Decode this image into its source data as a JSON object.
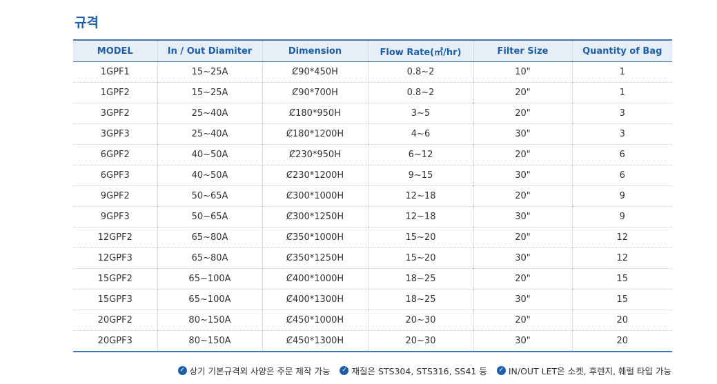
{
  "title": "규격",
  "table": {
    "headers": [
      "MODEL",
      "In / Out Diamiter",
      "Dimension",
      "Flow Rate(㎥/hr)",
      "Filter Size",
      "Quantity of Bag"
    ],
    "rows": [
      [
        "1GPF1",
        "15~25A",
        "Ȼ90*450H",
        "0.8~2",
        "10\"",
        "1"
      ],
      [
        "1GPF2",
        "15~25A",
        "Ȼ90*700H",
        "0.8~2",
        "20\"",
        "1"
      ],
      [
        "3GPF2",
        "25~40A",
        "Ȼ180*950H",
        "3~5",
        "20\"",
        "3"
      ],
      [
        "3GPF3",
        "25~40A",
        "Ȼ180*1200H",
        "4~6",
        "30\"",
        "3"
      ],
      [
        "6GPF2",
        "40~50A",
        "Ȼ230*950H",
        "6~12",
        "20\"",
        "6"
      ],
      [
        "6GPF3",
        "40~50A",
        "Ȼ230*1200H",
        "9~15",
        "30\"",
        "6"
      ],
      [
        "9GPF2",
        "50~65A",
        "Ȼ300*1000H",
        "12~18",
        "20\"",
        "9"
      ],
      [
        "9GPF3",
        "50~65A",
        "Ȼ300*1250H",
        "12~18",
        "30\"",
        "9"
      ],
      [
        "12GPF2",
        "65~80A",
        "Ȼ350*1000H",
        "15~20",
        "20\"",
        "12"
      ],
      [
        "12GPF3",
        "65~80A",
        "Ȼ350*1250H",
        "15~20",
        "30\"",
        "12"
      ],
      [
        "15GPF2",
        "65~100A",
        "Ȼ400*1000H",
        "18~25",
        "20\"",
        "15"
      ],
      [
        "15GPF3",
        "65~100A",
        "Ȼ400*1300H",
        "18~25",
        "30\"",
        "15"
      ],
      [
        "20GPF2",
        "80~150A",
        "Ȼ450*1000H",
        "20~30",
        "20\"",
        "20"
      ],
      [
        "20GPF3",
        "80~150A",
        "Ȼ450*1300H",
        "20~30",
        "30\"",
        "20"
      ]
    ]
  },
  "notes": [
    {
      "icon": "check-circle-icon",
      "text": "상기 기본규격외 사양은 주문 제작 가능"
    },
    {
      "icon": "check-circle-icon",
      "text": "재질은 STS304, STS316, SS41 등"
    },
    {
      "icon": "check-circle-icon",
      "text": "IN/OUT LET은 소켓, 후렌지, 훼럴 타입 가능"
    }
  ],
  "colors": {
    "accent": "#1d5fa6",
    "header_bg": "#e6eef8",
    "border": "#3f76b8"
  }
}
